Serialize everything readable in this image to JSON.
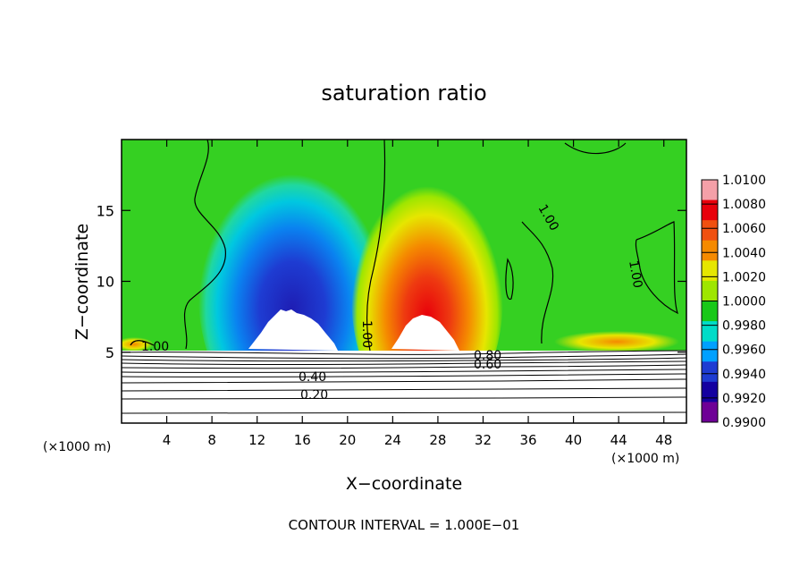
{
  "chart_data": {
    "type": "heatmap",
    "title": "saturation ratio",
    "xlabel": "X−coordinate",
    "ylabel": "Z−coordinate",
    "x_unit_label": "(×1000 m)",
    "xlim": [
      0,
      50
    ],
    "ylim": [
      0,
      20
    ],
    "x_ticks": [
      4,
      8,
      12,
      16,
      20,
      24,
      28,
      32,
      36,
      40,
      44,
      48
    ],
    "y_ticks": [
      5,
      10,
      15
    ],
    "colorbar": {
      "labels": [
        "1.0100",
        "1.0080",
        "1.0060",
        "1.0040",
        "1.0020",
        "1.0000",
        "0.9980",
        "0.9960",
        "0.9940",
        "0.9920",
        "0.9900"
      ],
      "colors": [
        "#f4a0a8",
        "#e8000b",
        "#f05010",
        "#f58a00",
        "#e6e600",
        "#9ee600",
        "#18c818",
        "#00dcc8",
        "#00a0ff",
        "#1e3cd2",
        "#1400a0",
        "#6e0096"
      ]
    },
    "contour_labels": [
      "1.00",
      "1.00",
      "1.00",
      "1.00",
      "1.00",
      "0.80",
      "0.60",
      "0.40",
      "0.20"
    ],
    "contour_interval_text": "CONTOUR INTERVAL = 1.000E−01",
    "features": {
      "subsaturated_min": {
        "x": 15,
        "z": 7.5,
        "value": 0.99
      },
      "supersaturated_max": {
        "x": 27,
        "z": 7,
        "value": 1.01
      }
    }
  }
}
